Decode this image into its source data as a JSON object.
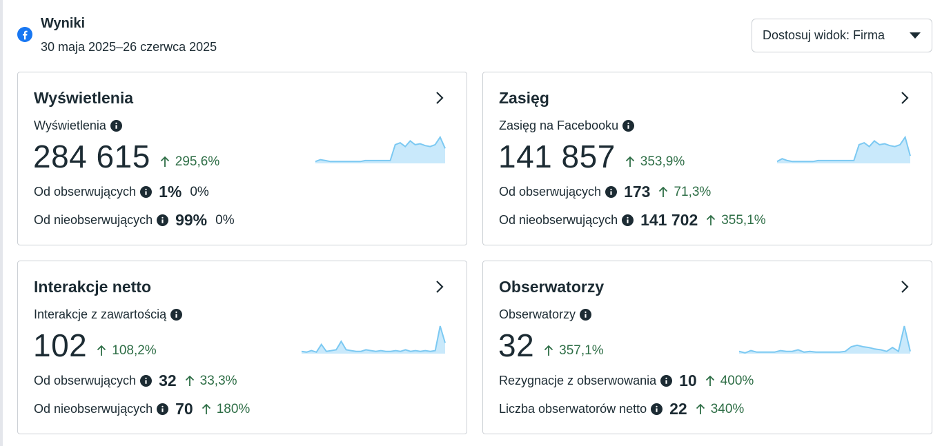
{
  "header": {
    "title": "Wyniki",
    "date_range": "30 maja 2025–26 czerwca 2025",
    "view_button": "Dostosuj widok: Firma",
    "brand_color": "#1877f2"
  },
  "cards": [
    {
      "title": "Wyświetlenia",
      "metric_label": "Wyświetlenia",
      "value": "284 615",
      "change": "295,6%",
      "rows": [
        {
          "label": "Od obserwujących",
          "value": "1%",
          "change": "0%",
          "trend": "flat"
        },
        {
          "label": "Od nieobserwujących",
          "value": "99%",
          "change": "0%",
          "trend": "flat"
        }
      ],
      "sparkline": [
        2,
        4,
        3,
        2,
        2,
        2,
        2,
        2,
        2,
        2,
        3,
        3,
        3,
        3,
        3,
        3,
        20,
        22,
        18,
        24,
        20,
        21,
        19,
        18,
        20,
        28,
        16
      ]
    },
    {
      "title": "Zasięg",
      "metric_label": "Zasięg na Facebooku",
      "value": "141 857",
      "change": "353,9%",
      "rows": [
        {
          "label": "Od obserwujących",
          "value": "173",
          "change": "71,3%",
          "trend": "up"
        },
        {
          "label": "Od nieobserwujących",
          "value": "141 702",
          "change": "355,1%",
          "trend": "up"
        }
      ],
      "sparkline": [
        2,
        5,
        3,
        2,
        2,
        2,
        2,
        2,
        3,
        3,
        3,
        3,
        3,
        3,
        3,
        3,
        20,
        22,
        18,
        24,
        20,
        21,
        19,
        18,
        20,
        28,
        8
      ]
    },
    {
      "title": "Interakcje netto",
      "metric_label": "Interakcje z zawartością",
      "value": "102",
      "change": "108,2%",
      "rows": [
        {
          "label": "Od obserwujących",
          "value": "32",
          "change": "33,3%",
          "trend": "up"
        },
        {
          "label": "Od nieobserwujących",
          "value": "70",
          "change": "180%",
          "trend": "up"
        }
      ],
      "sparkline": [
        3,
        2,
        4,
        2,
        12,
        3,
        4,
        5,
        16,
        5,
        4,
        3,
        3,
        5,
        4,
        3,
        4,
        3,
        3,
        4,
        3,
        5,
        3,
        4,
        3,
        4,
        3,
        4,
        36,
        14
      ]
    },
    {
      "title": "Obserwatorzy",
      "metric_label": "Obserwatorzy",
      "value": "32",
      "change": "357,1%",
      "rows": [
        {
          "label": "Rezygnacje z obserwowania",
          "value": "10",
          "change": "400%",
          "trend": "up"
        },
        {
          "label": "Liczba obserwatorów netto",
          "value": "22",
          "change": "340%",
          "trend": "up"
        }
      ],
      "sparkline": [
        3,
        1,
        4,
        2,
        2,
        2,
        2,
        4,
        3,
        3,
        5,
        2,
        3,
        2,
        2,
        2,
        2,
        2,
        3,
        9,
        11,
        9,
        8,
        6,
        5,
        3,
        8,
        3,
        36,
        3
      ]
    }
  ],
  "colors": {
    "positive": "#2e6e46",
    "sparkline_stroke": "#7cc9f2",
    "sparkline_fill": "#c9e9fb"
  }
}
